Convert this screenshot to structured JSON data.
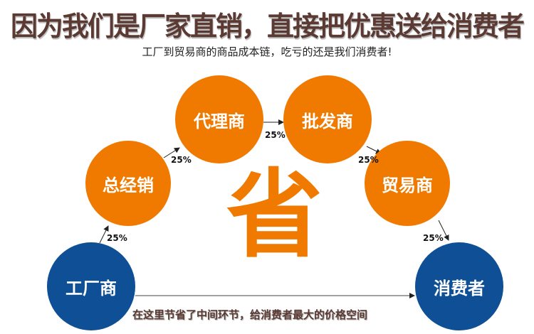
{
  "header": {
    "title": "因为我们是厂家直销，直接把优惠送给消费者",
    "subtitle": "工厂到贸易商的商品成本链，吃亏的还是我们消费者!"
  },
  "nodes": [
    {
      "label": "工厂商",
      "color": "#0e4f95"
    },
    {
      "label": "总经销",
      "color": "#f07a00"
    },
    {
      "label": "代理商",
      "color": "#f07a00"
    },
    {
      "label": "批发商",
      "color": "#f07a00"
    },
    {
      "label": "贸易商",
      "color": "#f07a00"
    },
    {
      "label": "消费者",
      "color": "#0e4f95"
    }
  ],
  "markups": [
    "25%",
    "25%",
    "25%",
    "25%",
    "25%"
  ],
  "center_char": "省",
  "footer": "在这里节省了中间环节，给消费者最大的价格空间"
}
